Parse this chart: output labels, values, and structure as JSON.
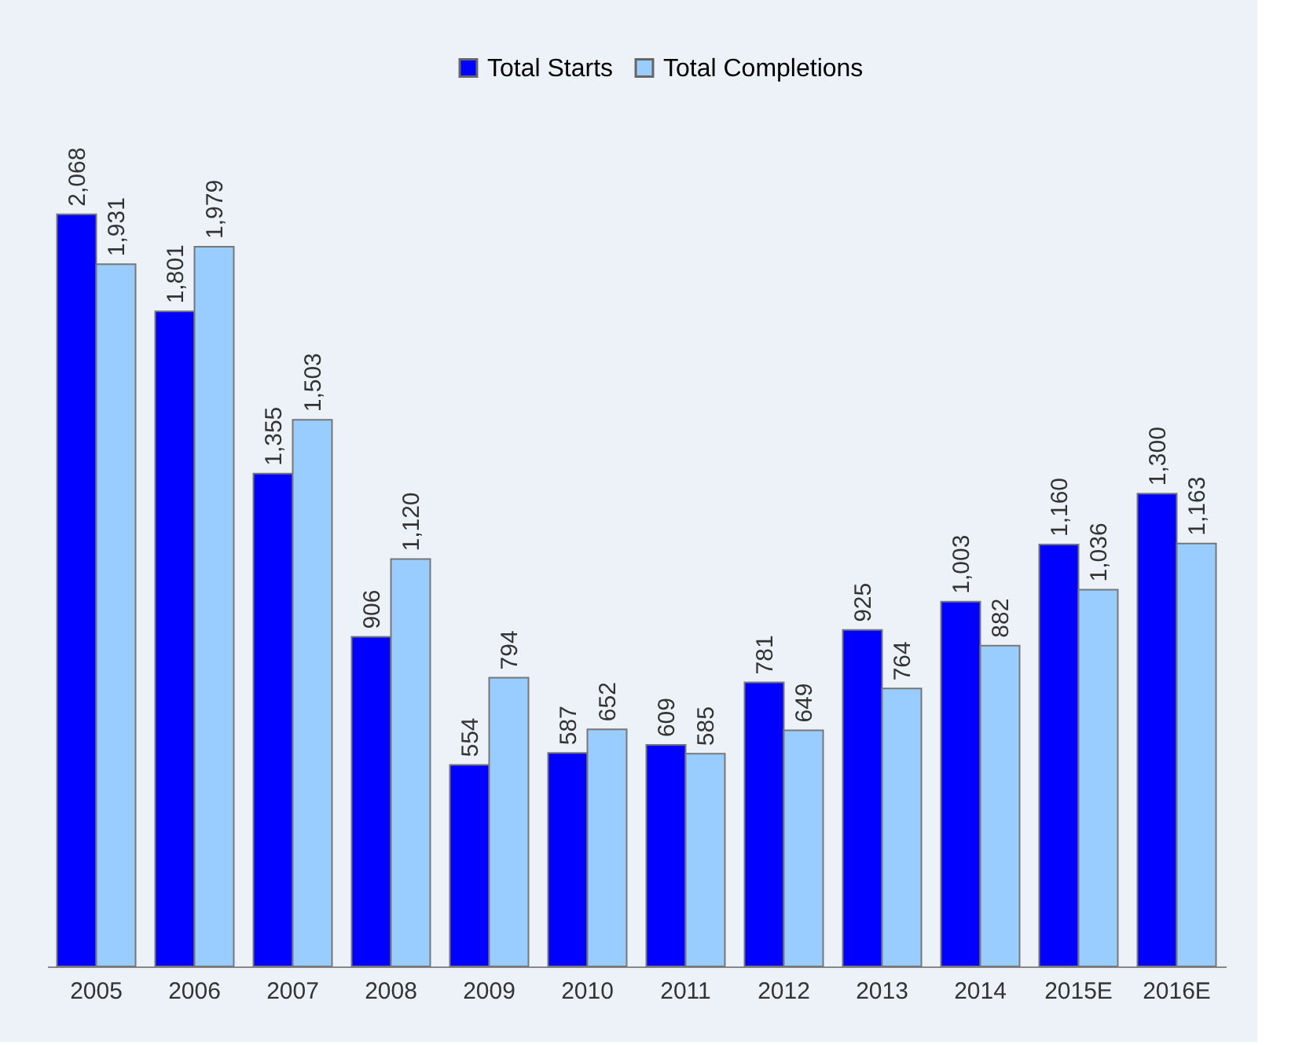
{
  "chart_data": {
    "type": "bar",
    "categories": [
      "2005",
      "2006",
      "2007",
      "2008",
      "2009",
      "2010",
      "2011",
      "2012",
      "2013",
      "2014",
      "2015E",
      "2016E"
    ],
    "series": [
      {
        "name": "Total Starts",
        "color": "#0000ff",
        "values": [
          2068,
          1801,
          1355,
          906,
          554,
          587,
          609,
          781,
          925,
          1003,
          1160,
          1300
        ],
        "value_labels": [
          "2,068",
          "1,801",
          "1,355",
          "906",
          "554",
          "587",
          "609",
          "781",
          "925",
          "1,003",
          "1,160",
          "1,300"
        ]
      },
      {
        "name": "Total Completions",
        "color": "#99ccff",
        "values": [
          1931,
          1979,
          1503,
          1120,
          794,
          652,
          585,
          649,
          764,
          882,
          1036,
          1163
        ],
        "value_labels": [
          "1,931",
          "1,979",
          "1,503",
          "1,120",
          "794",
          "652",
          "585",
          "649",
          "764",
          "882",
          "1,036",
          "1,163"
        ]
      }
    ],
    "legend": "top",
    "tick_labels": "x",
    "grid": false
  }
}
